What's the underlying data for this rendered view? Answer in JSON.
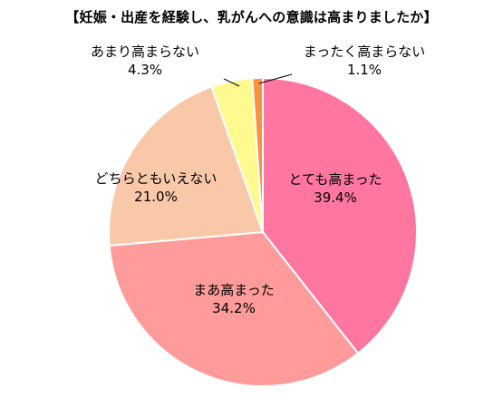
{
  "chart_data": {
    "type": "pie",
    "title": "【妊娠・出産を経験し、乳がんへの意識は高まりましたか】",
    "slices": [
      {
        "label": "とても高まった",
        "value": 39.4,
        "value_label": "39.4%",
        "color": "#FF76A0"
      },
      {
        "label": "まあ高まった",
        "value": 34.2,
        "value_label": "34.2%",
        "color": "#FF9B9B"
      },
      {
        "label": "どちらともいえない",
        "value": 21.0,
        "value_label": "21.0%",
        "color": "#F9C8A8"
      },
      {
        "label": "あまり高まらない",
        "value": 4.3,
        "value_label": "4.3%",
        "color": "#FFFA90"
      },
      {
        "label": "まったく高まらない",
        "value": 1.1,
        "value_label": "1.1%",
        "color": "#F79241"
      }
    ]
  }
}
